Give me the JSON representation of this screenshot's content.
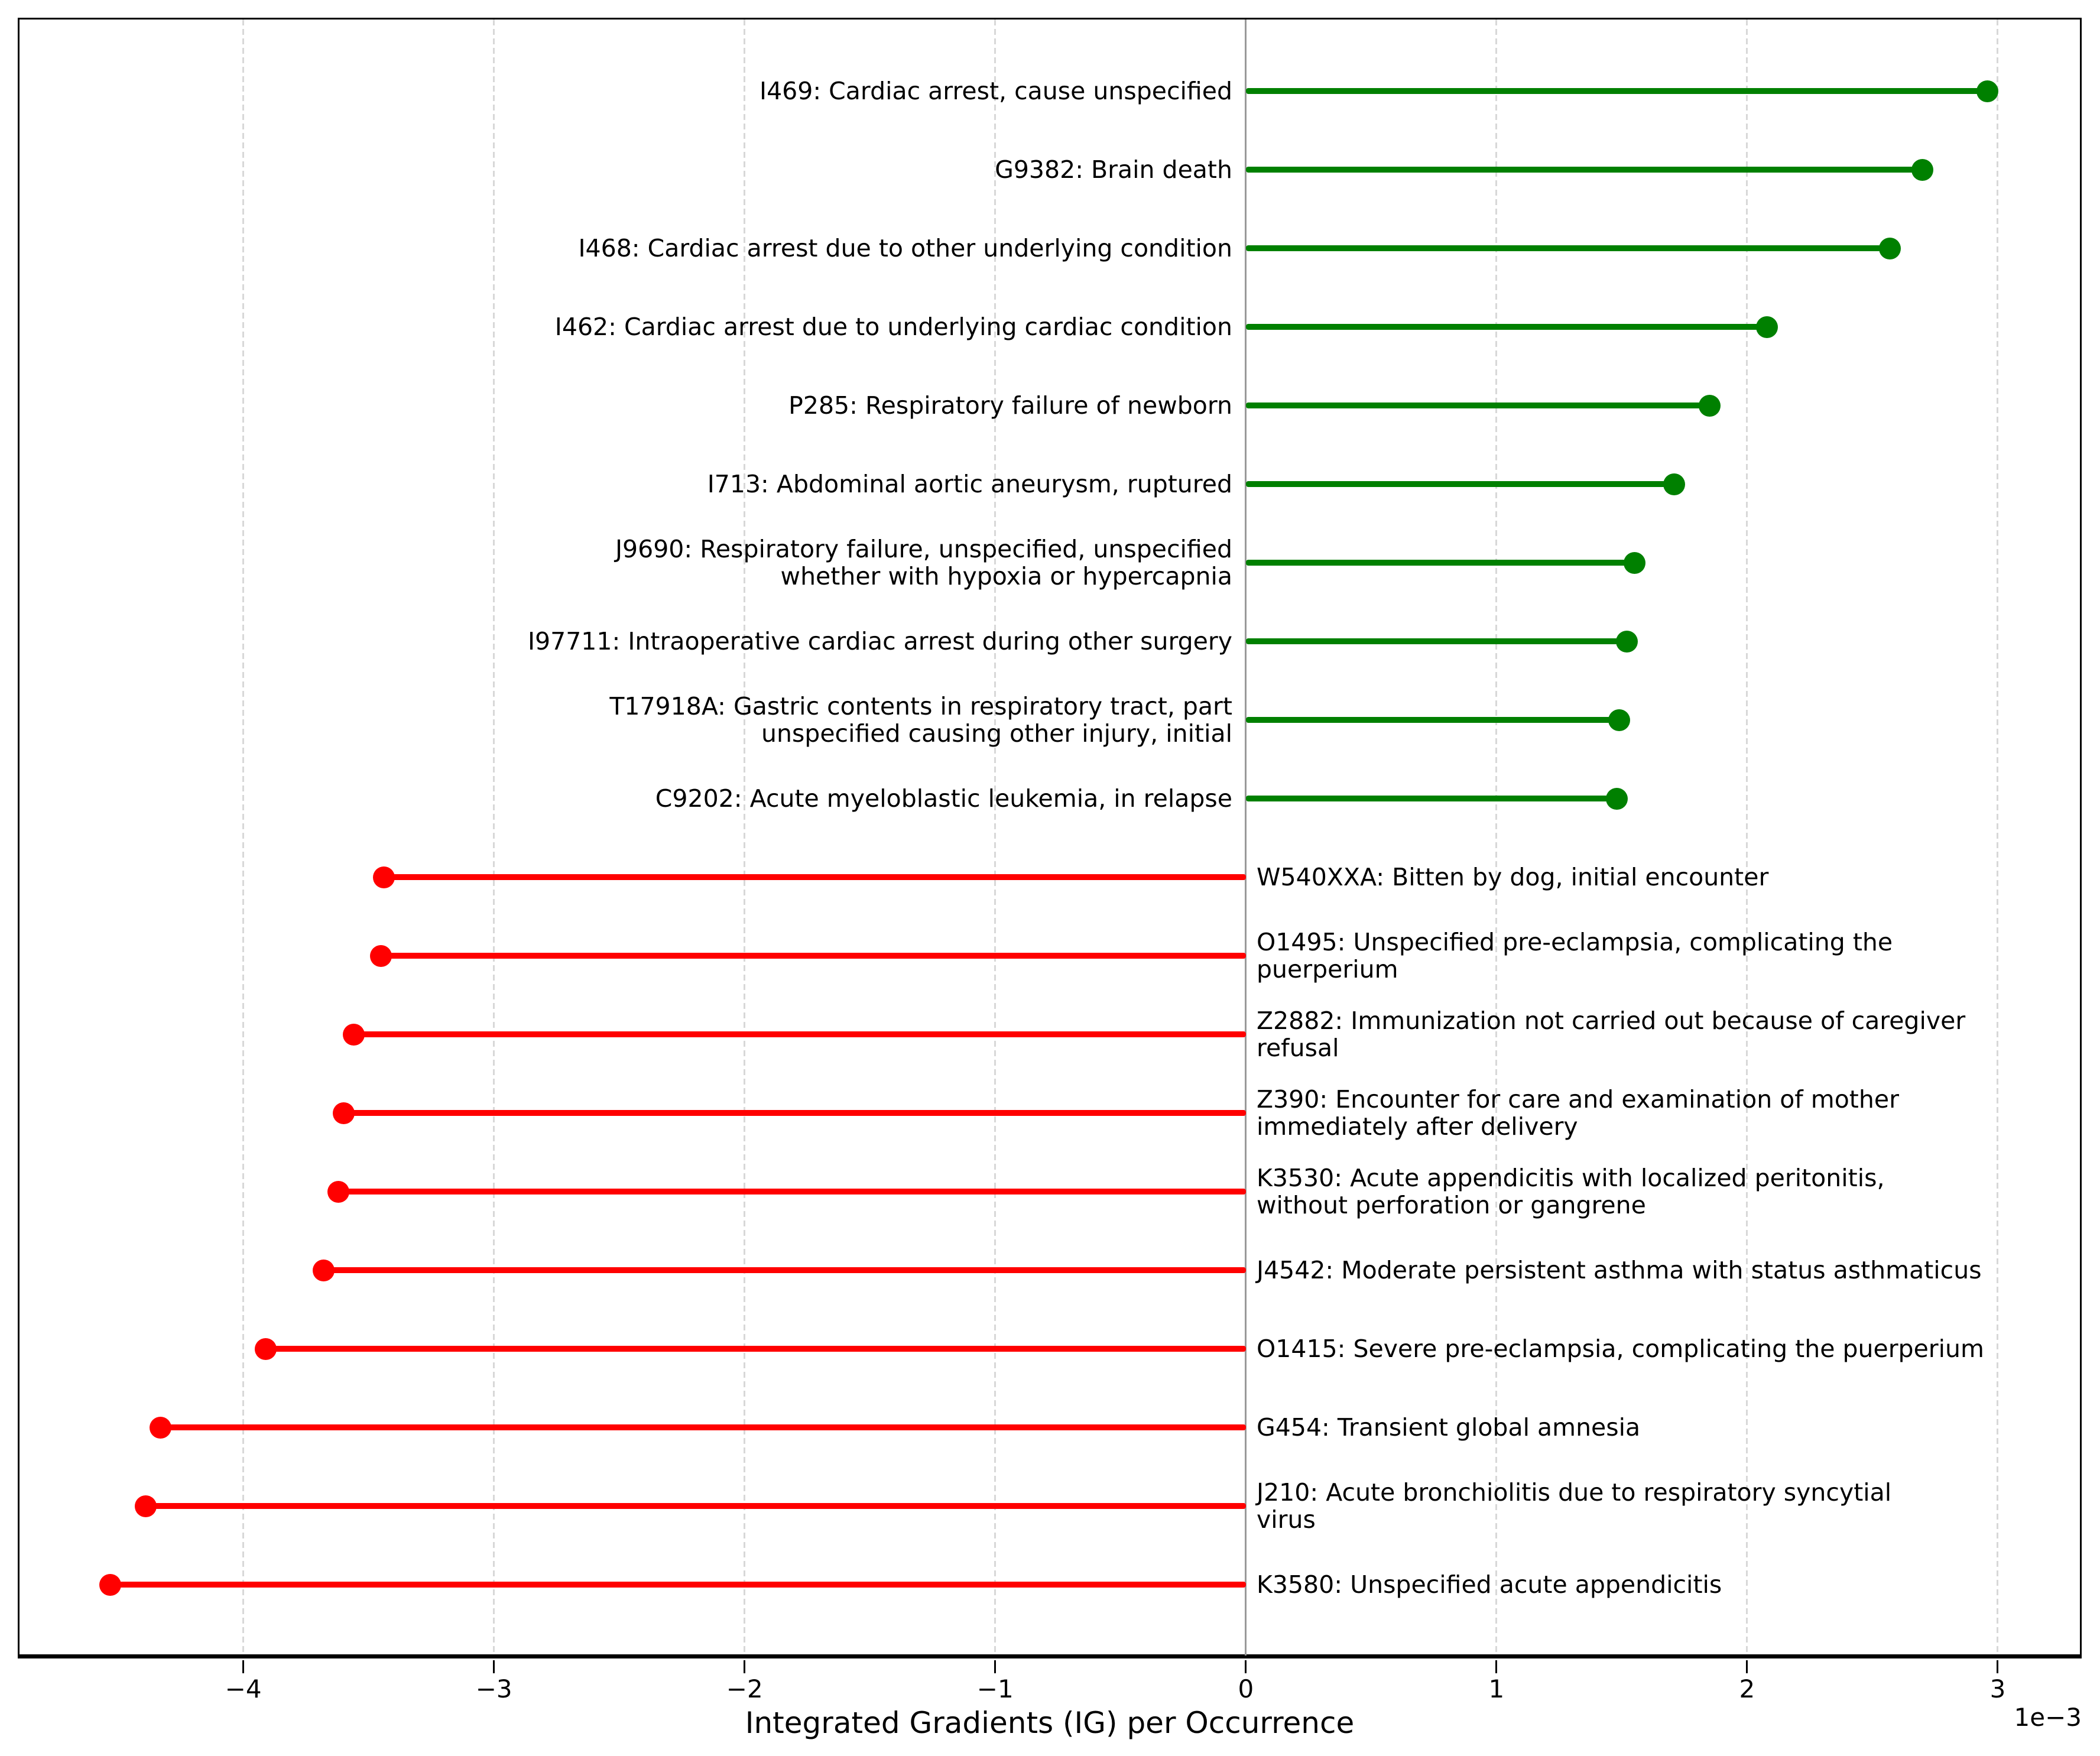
{
  "chart_data": {
    "type": "bar",
    "variant": "horizontal-lollipop-stem",
    "title": "",
    "xlabel": "Integrated Gradients (IG) per Occurrence",
    "x_offset_text": "1e−3",
    "value_scale": "1e-3",
    "xlim": [
      -4.9,
      3.335
    ],
    "xticks": [
      -4,
      -3,
      -2,
      -1,
      0,
      1,
      2,
      3
    ],
    "xtick_labels": [
      "−4",
      "−3",
      "−2",
      "−1",
      "0",
      "1",
      "2",
      "3"
    ],
    "grid": {
      "vertical_dashed_at_ticks": true,
      "zero_line": "solid-gray-vertical"
    },
    "legend": null,
    "colors": {
      "positive": "#008000",
      "negative": "#ff0000",
      "grid": "#d8d8d8",
      "zero_line": "#999999",
      "axis": "#000000",
      "text": "#000000",
      "background": "#ffffff"
    },
    "rows": [
      {
        "code": "I469",
        "sign": "positive",
        "value": 2.96,
        "label": "I469: Cardiac arrest, cause unspecified",
        "lines": [
          "I469: Cardiac arrest, cause unspecified"
        ]
      },
      {
        "code": "G9382",
        "sign": "positive",
        "value": 2.7,
        "label": "G9382: Brain death",
        "lines": [
          "G9382: Brain death"
        ]
      },
      {
        "code": "I468",
        "sign": "positive",
        "value": 2.57,
        "label": "I468: Cardiac arrest due to other underlying condition",
        "lines": [
          "I468: Cardiac arrest due to other underlying condition"
        ]
      },
      {
        "code": "I462",
        "sign": "positive",
        "value": 2.08,
        "label": "I462: Cardiac arrest due to underlying cardiac condition",
        "lines": [
          "I462: Cardiac arrest due to underlying cardiac condition"
        ]
      },
      {
        "code": "P285",
        "sign": "positive",
        "value": 1.85,
        "label": "P285: Respiratory failure of newborn",
        "lines": [
          "P285: Respiratory failure of newborn"
        ]
      },
      {
        "code": "I713",
        "sign": "positive",
        "value": 1.71,
        "label": "I713: Abdominal aortic aneurysm, ruptured",
        "lines": [
          "I713: Abdominal aortic aneurysm, ruptured"
        ]
      },
      {
        "code": "J9690",
        "sign": "positive",
        "value": 1.55,
        "label": "J9690: Respiratory failure, unspecified, unspecified whether with hypoxia or hypercapnia",
        "lines": [
          "J9690: Respiratory failure, unspecified, unspecified",
          "whether with hypoxia or hypercapnia"
        ]
      },
      {
        "code": "I97711",
        "sign": "positive",
        "value": 1.52,
        "label": "I97711: Intraoperative cardiac arrest during other surgery",
        "lines": [
          "I97711: Intraoperative cardiac arrest during other surgery"
        ]
      },
      {
        "code": "T17918A",
        "sign": "positive",
        "value": 1.49,
        "label": "T17918A: Gastric contents in respiratory tract, part unspecified causing other injury, initial",
        "lines": [
          "T17918A: Gastric contents in respiratory tract, part",
          "unspecified causing other injury, initial"
        ]
      },
      {
        "code": "C9202",
        "sign": "positive",
        "value": 1.48,
        "label": "C9202: Acute myeloblastic leukemia, in relapse",
        "lines": [
          "C9202: Acute myeloblastic leukemia, in relapse"
        ]
      },
      {
        "code": "W540XXA",
        "sign": "negative",
        "value": -3.44,
        "label": "W540XXA: Bitten by dog, initial encounter",
        "lines": [
          "W540XXA: Bitten by dog, initial encounter"
        ]
      },
      {
        "code": "O1495",
        "sign": "negative",
        "value": -3.45,
        "label": "O1495: Unspecified pre-eclampsia, complicating the puerperium",
        "lines": [
          "O1495: Unspecified pre-eclampsia, complicating the",
          "puerperium"
        ]
      },
      {
        "code": "Z2882",
        "sign": "negative",
        "value": -3.56,
        "label": "Z2882: Immunization not carried out because of caregiver refusal",
        "lines": [
          "Z2882: Immunization not carried out because of caregiver",
          "refusal"
        ]
      },
      {
        "code": "Z390",
        "sign": "negative",
        "value": -3.6,
        "label": "Z390: Encounter for care and examination of mother immediately after delivery",
        "lines": [
          "Z390: Encounter for care and examination of mother",
          "immediately after delivery"
        ]
      },
      {
        "code": "K3530",
        "sign": "negative",
        "value": -3.62,
        "label": "K3530: Acute appendicitis with localized peritonitis, without perforation or gangrene",
        "lines": [
          "K3530: Acute appendicitis with localized peritonitis,",
          "without perforation or gangrene"
        ]
      },
      {
        "code": "J4542",
        "sign": "negative",
        "value": -3.68,
        "label": "J4542: Moderate persistent asthma with status asthmaticus",
        "lines": [
          "J4542: Moderate persistent asthma with status asthmaticus"
        ]
      },
      {
        "code": "O1415",
        "sign": "negative",
        "value": -3.91,
        "label": "O1415: Severe pre-eclampsia, complicating the puerperium",
        "lines": [
          "O1415: Severe pre-eclampsia, complicating the puerperium"
        ]
      },
      {
        "code": "G454",
        "sign": "negative",
        "value": -4.33,
        "label": "G454: Transient global amnesia",
        "lines": [
          "G454: Transient global amnesia"
        ]
      },
      {
        "code": "J210",
        "sign": "negative",
        "value": -4.39,
        "label": "J210: Acute bronchiolitis due to respiratory syncytial virus",
        "lines": [
          "J210: Acute bronchiolitis due to respiratory syncytial",
          "virus"
        ]
      },
      {
        "code": "K3580",
        "sign": "negative",
        "value": -4.53,
        "label": "K3580: Unspecified acute appendicitis",
        "lines": [
          "K3580: Unspecified acute appendicitis"
        ]
      }
    ]
  }
}
